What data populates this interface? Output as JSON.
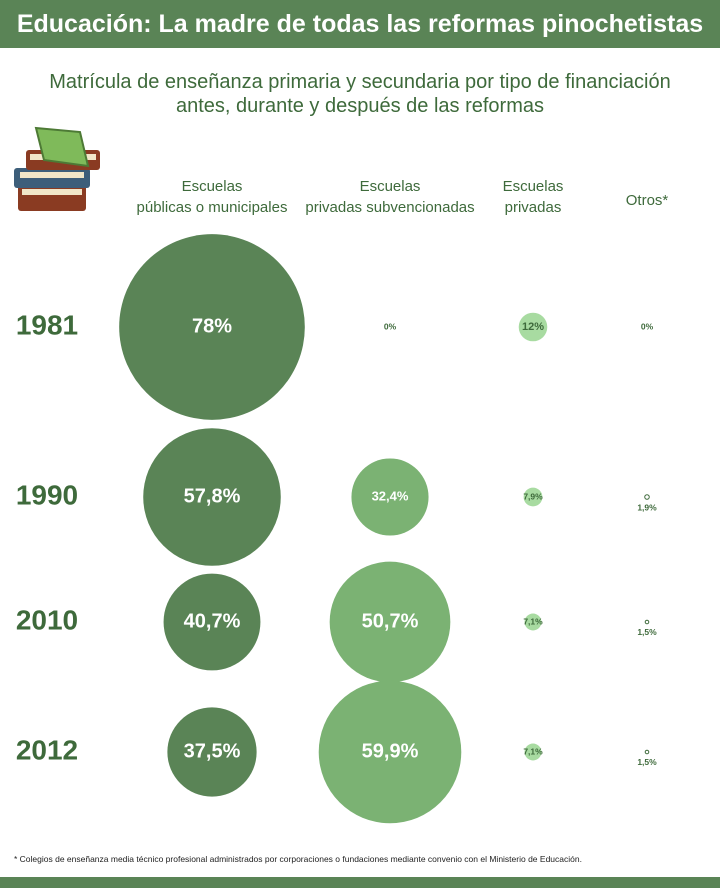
{
  "chart_data": {
    "type": "bubble-matrix",
    "title": "Educación: La madre de todas las reformas pinochetistas",
    "subtitle": "Matrícula de enseñanza primaria y secundaria por tipo de financiación\nantes, durante y después de las reformas",
    "categories": [
      "1981",
      "1990",
      "2010",
      "2012"
    ],
    "series": [
      {
        "name": "Escuelas\npúblicas o municipales",
        "color": "#5a8456",
        "values": [
          78,
          57.8,
          40.7,
          37.5
        ],
        "value_labels": [
          "78%",
          "57,8%",
          "40,7%",
          "37,5%"
        ]
      },
      {
        "name": "Escuelas\nprivadas subvencionadas",
        "color": "#7bb273",
        "values": [
          0,
          32.4,
          50.7,
          59.9
        ],
        "value_labels": [
          "0%",
          "32,4%",
          "50,7%",
          "59,9%"
        ]
      },
      {
        "name": "Escuelas\nprivadas",
        "color": "#a8dba1",
        "values": [
          12,
          7.9,
          7.1,
          7.1
        ],
        "value_labels": [
          "12%",
          "7,9%",
          "7,1%",
          "7,1%"
        ]
      },
      {
        "name": "Otros*",
        "color": "#ffffff",
        "values": [
          0,
          1.9,
          1.5,
          1.5
        ],
        "value_labels": [
          "0%",
          "1,9%",
          "1,5%",
          "1,5%"
        ]
      }
    ],
    "note": "* Colegios de enseñanza media técnico profesional administrados por corporaciones o fundaciones mediante convenio con el Ministerio de Educación."
  }
}
